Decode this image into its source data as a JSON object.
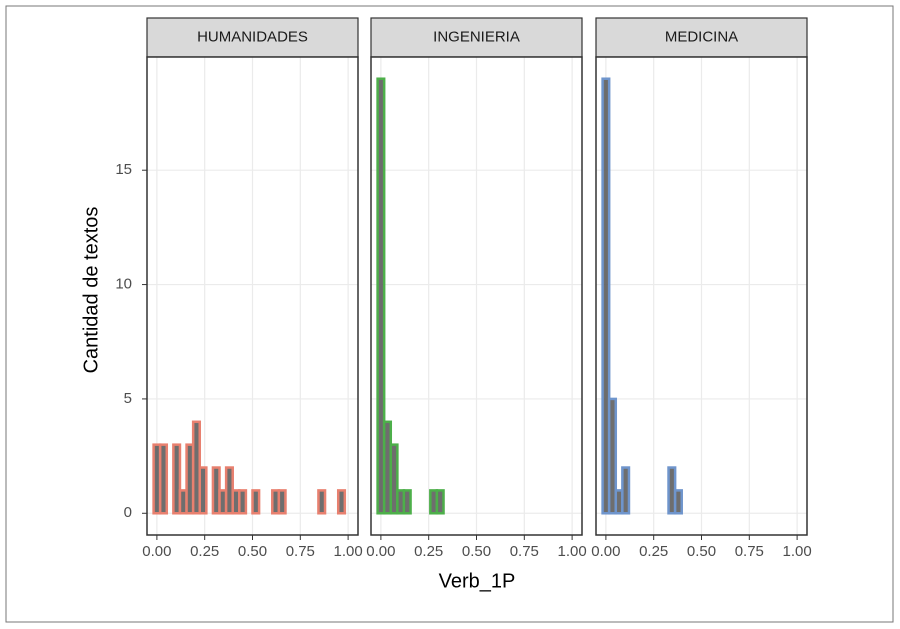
{
  "chart_data": {
    "type": "histogram",
    "x_label": "Verb_1P",
    "y_label": "Cantidad de textos",
    "bins": [
      -0.0172,
      0.0172,
      0.0517,
      0.0862,
      0.1207,
      0.1552,
      0.1897,
      0.2241,
      0.2586,
      0.2931,
      0.3276,
      0.3621,
      0.3966,
      0.431,
      0.4655,
      0.5,
      0.5345,
      0.569,
      0.6034,
      0.6379,
      0.6724,
      0.7069,
      0.7414,
      0.7759,
      0.8103,
      0.8448,
      0.8793,
      0.9138,
      0.9483,
      0.9828,
      1.0172
    ],
    "xlim": [
      -0.0517,
      1.0517
    ],
    "xticks": [
      {
        "value": 0,
        "label": "0.00"
      },
      {
        "value": 0.25,
        "label": "0.25"
      },
      {
        "value": 0.5,
        "label": "0.50"
      },
      {
        "value": 0.75,
        "label": "0.75"
      },
      {
        "value": 1,
        "label": "1.00"
      }
    ],
    "ylim": [
      -0.95,
      19.95
    ],
    "yticks": [
      0,
      5,
      10,
      15
    ],
    "grid": true,
    "panels": [
      {
        "title": "HUMANIDADES",
        "color": "#e8806f",
        "counts": [
          3,
          3,
          0,
          3,
          1,
          3,
          4,
          2,
          0,
          2,
          1,
          2,
          1,
          1,
          0,
          1,
          0,
          0,
          1,
          1,
          0,
          0,
          0,
          0,
          0,
          1,
          0,
          0,
          1,
          0
        ]
      },
      {
        "title": "INGENIERIA",
        "color": "#4daf4a",
        "counts": [
          19,
          4,
          3,
          1,
          1,
          0,
          0,
          0,
          1,
          1,
          0,
          0,
          0,
          0,
          0,
          0,
          0,
          0,
          0,
          0,
          0,
          0,
          0,
          0,
          0,
          0,
          0,
          0,
          0,
          0
        ]
      },
      {
        "title": "MEDICINA",
        "color": "#6f95cc",
        "counts": [
          19,
          5,
          1,
          2,
          0,
          0,
          0,
          0,
          0,
          0,
          2,
          1,
          0,
          0,
          0,
          0,
          0,
          0,
          0,
          0,
          0,
          0,
          0,
          0,
          0,
          0,
          0,
          0,
          0,
          0
        ]
      }
    ]
  }
}
